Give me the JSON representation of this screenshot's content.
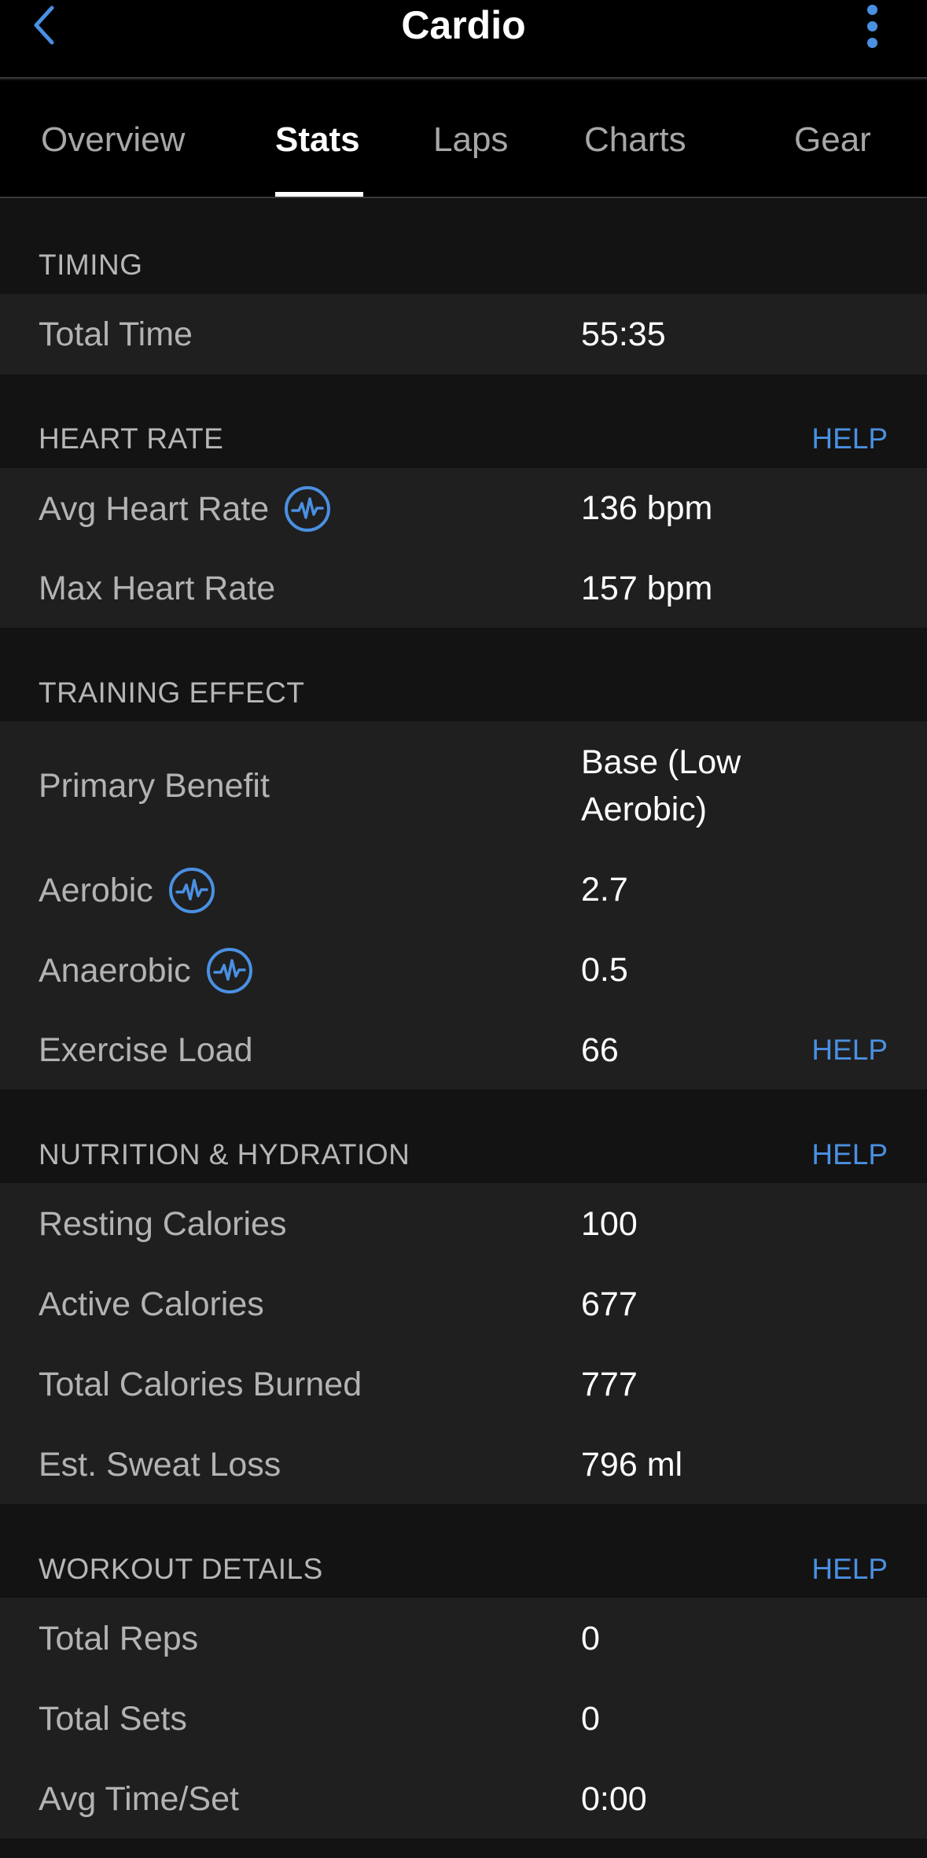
{
  "header": {
    "title": "Cardio",
    "back_icon": "chevron-left-icon",
    "menu_icon": "more-vertical-icon",
    "accent": "#4a90e2"
  },
  "tabs": [
    {
      "label": "Overview",
      "active": false
    },
    {
      "label": "Stats",
      "active": true
    },
    {
      "label": "Laps",
      "active": false
    },
    {
      "label": "Charts",
      "active": false
    },
    {
      "label": "Gear",
      "active": false
    }
  ],
  "sections": {
    "timing": {
      "title": "TIMING",
      "rows": [
        {
          "label": "Total Time",
          "value": "55:35"
        }
      ]
    },
    "heart_rate": {
      "title": "HEART RATE",
      "help": "HELP",
      "rows": [
        {
          "label": "Avg Heart Rate",
          "value": "136 bpm",
          "icon": "heart-rate-icon"
        },
        {
          "label": "Max Heart Rate",
          "value": "157 bpm"
        }
      ]
    },
    "training_effect": {
      "title": "TRAINING EFFECT",
      "rows": [
        {
          "label": "Primary Benefit",
          "value": "Base (Low Aerobic)"
        },
        {
          "label": "Aerobic",
          "value": "2.7",
          "icon": "heart-rate-icon"
        },
        {
          "label": "Anaerobic",
          "value": "0.5",
          "icon": "heart-rate-icon"
        },
        {
          "label": "Exercise Load",
          "value": "66",
          "help": "HELP"
        }
      ]
    },
    "nutrition": {
      "title": "NUTRITION & HYDRATION",
      "help": "HELP",
      "rows": [
        {
          "label": "Resting Calories",
          "value": "100"
        },
        {
          "label": "Active Calories",
          "value": "677"
        },
        {
          "label": "Total Calories Burned",
          "value": "777"
        },
        {
          "label": "Est. Sweat Loss",
          "value": "796 ml"
        }
      ]
    },
    "workout": {
      "title": "WORKOUT DETAILS",
      "help": "HELP",
      "rows": [
        {
          "label": "Total Reps",
          "value": "0"
        },
        {
          "label": "Total Sets",
          "value": "0"
        },
        {
          "label": "Avg Time/Set",
          "value": "0:00"
        }
      ]
    }
  }
}
